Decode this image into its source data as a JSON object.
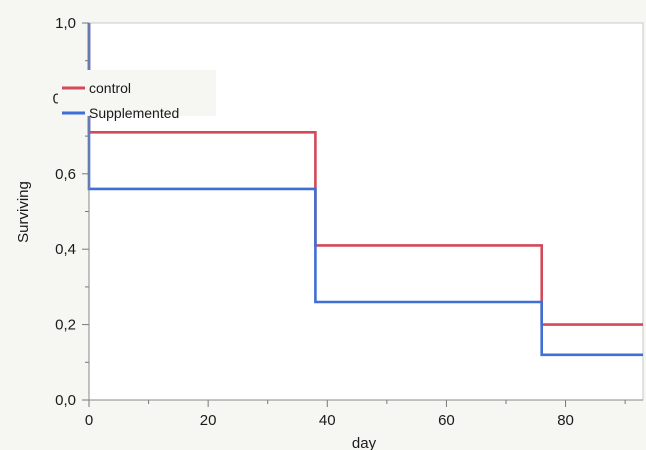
{
  "chart_data": {
    "type": "line",
    "step": true,
    "xlabel": "day",
    "ylabel": "Surviving",
    "xlim": [
      0,
      93
    ],
    "ylim": [
      0,
      1
    ],
    "x_ticks": [
      0,
      20,
      40,
      60,
      80
    ],
    "x_tick_labels": [
      "0",
      "20",
      "40",
      "60",
      "80"
    ],
    "y_ticks": [
      0,
      0.2,
      0.4,
      0.6,
      1.0
    ],
    "y_tick_labels": [
      "0,0",
      "0,2",
      "0,4",
      "0,6",
      "1,0"
    ],
    "y_partial_label": "0",
    "legend_position": "top-left",
    "series": [
      {
        "name": "control",
        "color": "#d24a59",
        "x": [
          0,
          0,
          38,
          38,
          76,
          76,
          93
        ],
        "y": [
          1.0,
          0.71,
          0.71,
          0.41,
          0.41,
          0.2,
          0.2
        ]
      },
      {
        "name": "Supplemented",
        "color": "#3f6fd4",
        "x": [
          0,
          0,
          38,
          38,
          76,
          76,
          93
        ],
        "y": [
          1.0,
          0.56,
          0.56,
          0.26,
          0.26,
          0.12,
          0.12
        ]
      }
    ]
  }
}
